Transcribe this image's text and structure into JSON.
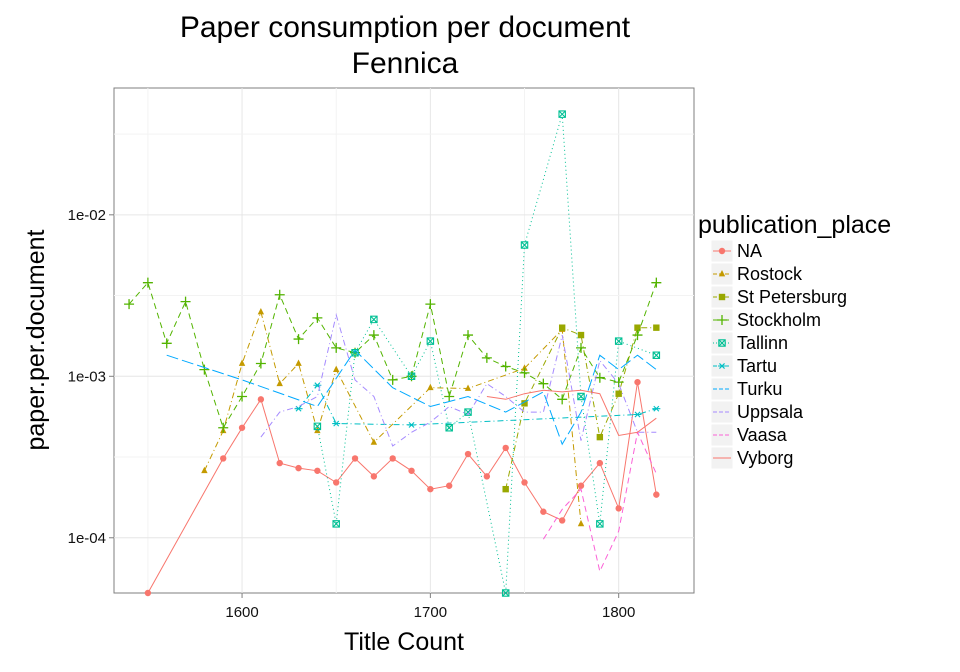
{
  "chart_data": {
    "type": "line",
    "title": "Paper consumption per document",
    "subtitle": "Fennica",
    "xlabel": "Title Count",
    "ylabel": "paper.per.document",
    "x_scale": "linear",
    "y_scale": "log10",
    "xlim": [
      1532,
      1840
    ],
    "ylim": [
      4.55e-05,
      0.061
    ],
    "x_ticks": [
      1600,
      1700,
      1800
    ],
    "x_tick_labels": [
      "1600",
      "1700",
      "1800"
    ],
    "y_ticks": [
      0.0001,
      0.001,
      0.01
    ],
    "y_tick_labels": [
      "1e-04",
      "1e-03",
      "1e-02"
    ],
    "grid": true,
    "legend_title": "publication_place",
    "legend_position": "right",
    "series": [
      {
        "name": "NA",
        "color": "#F8766D",
        "marker": "circle",
        "dash": "solid",
        "points": [
          [
            1550,
            4.55e-05
          ],
          [
            1590,
            0.00031
          ],
          [
            1600,
            0.00048
          ],
          [
            1610,
            0.00072
          ],
          [
            1620,
            0.00029
          ],
          [
            1630,
            0.00027
          ],
          [
            1640,
            0.00026
          ],
          [
            1650,
            0.00022
          ],
          [
            1660,
            0.00031
          ],
          [
            1670,
            0.00024
          ],
          [
            1680,
            0.00031
          ],
          [
            1690,
            0.00026
          ],
          [
            1700,
            0.0002
          ],
          [
            1710,
            0.00021
          ],
          [
            1720,
            0.00033
          ],
          [
            1730,
            0.00024
          ],
          [
            1740,
            0.00036
          ],
          [
            1750,
            0.00022
          ],
          [
            1760,
            0.000145
          ],
          [
            1770,
            0.000128
          ],
          [
            1780,
            0.00021
          ],
          [
            1790,
            0.00029
          ],
          [
            1800,
            0.000152
          ],
          [
            1810,
            0.00092
          ],
          [
            1820,
            0.000185
          ]
        ]
      },
      {
        "name": "Rostock",
        "color": "#C49A00",
        "marker": "triangle",
        "dash": "dashdot",
        "points": [
          [
            1580,
            0.00026
          ],
          [
            1590,
            0.00046
          ],
          [
            1600,
            0.0012
          ],
          [
            1610,
            0.0025
          ],
          [
            1620,
            0.0009
          ],
          [
            1630,
            0.0012
          ],
          [
            1640,
            0.00046
          ],
          [
            1650,
            0.0011
          ],
          [
            1670,
            0.00039
          ],
          [
            1700,
            0.00085
          ],
          [
            1720,
            0.00084
          ],
          [
            1750,
            0.00112
          ],
          [
            1770,
            0.00195
          ],
          [
            1780,
            0.000122
          ]
        ]
      },
      {
        "name": "St Petersburg",
        "color": "#99A800",
        "marker": "square",
        "dash": "dashdot",
        "points": [
          [
            1740,
            0.0002
          ],
          [
            1750,
            0.00068
          ],
          [
            1770,
            0.002
          ],
          [
            1780,
            0.0018
          ],
          [
            1790,
            0.00042
          ],
          [
            1800,
            0.00078
          ],
          [
            1810,
            0.002
          ],
          [
            1820,
            0.002
          ]
        ]
      },
      {
        "name": "Stockholm",
        "color": "#53B400",
        "marker": "plus",
        "dash": "dashed",
        "points": [
          [
            1540,
            0.0028
          ],
          [
            1550,
            0.0038
          ],
          [
            1560,
            0.0016
          ],
          [
            1570,
            0.0029
          ],
          [
            1580,
            0.0011
          ],
          [
            1590,
            0.00048
          ],
          [
            1600,
            0.00075
          ],
          [
            1610,
            0.0012
          ],
          [
            1620,
            0.0032
          ],
          [
            1630,
            0.0017
          ],
          [
            1640,
            0.0023
          ],
          [
            1650,
            0.0015
          ],
          [
            1660,
            0.0014
          ],
          [
            1670,
            0.0018
          ],
          [
            1680,
            0.00095
          ],
          [
            1690,
            0.001
          ],
          [
            1700,
            0.0028
          ],
          [
            1710,
            0.00075
          ],
          [
            1720,
            0.0018
          ],
          [
            1730,
            0.0013
          ],
          [
            1740,
            0.00115
          ],
          [
            1750,
            0.00105
          ],
          [
            1760,
            0.0009
          ],
          [
            1770,
            0.00072
          ],
          [
            1780,
            0.0015
          ],
          [
            1790,
            0.00098
          ],
          [
            1800,
            0.00092
          ],
          [
            1810,
            0.0018
          ],
          [
            1820,
            0.0038
          ]
        ]
      },
      {
        "name": "Tallinn",
        "color": "#00C094",
        "marker": "square-x",
        "dash": "dotted",
        "points": [
          [
            1640,
            0.00049
          ],
          [
            1650,
            0.000122
          ],
          [
            1660,
            0.0014
          ],
          [
            1670,
            0.00225
          ],
          [
            1690,
            0.001
          ],
          [
            1700,
            0.00165
          ],
          [
            1710,
            0.00048
          ],
          [
            1720,
            0.0006
          ],
          [
            1740,
            4.55e-05
          ],
          [
            1750,
            0.0065
          ],
          [
            1770,
            0.042
          ],
          [
            1780,
            0.00075
          ],
          [
            1790,
            0.000122
          ],
          [
            1800,
            0.00165
          ],
          [
            1820,
            0.00135
          ]
        ]
      },
      {
        "name": "Tartu",
        "color": "#00BFC4",
        "marker": "asterisk",
        "dash": "dashdot",
        "points": [
          [
            1630,
            0.00063
          ],
          [
            1640,
            0.00088
          ],
          [
            1650,
            0.00051
          ],
          [
            1690,
            0.0005
          ],
          [
            1810,
            0.00058
          ],
          [
            1820,
            0.00063
          ]
        ]
      },
      {
        "name": "Turku",
        "color": "#00A9FF",
        "marker": "none",
        "dash": "longdash",
        "points": [
          [
            1560,
            0.00135
          ],
          [
            1600,
            0.00095
          ],
          [
            1640,
            0.00065
          ],
          [
            1660,
            0.00145
          ],
          [
            1680,
            0.00085
          ],
          [
            1700,
            0.00065
          ],
          [
            1720,
            0.00075
          ],
          [
            1740,
            0.0006
          ],
          [
            1760,
            0.0008
          ],
          [
            1770,
            0.00038
          ],
          [
            1780,
            0.0006
          ],
          [
            1790,
            0.00135
          ],
          [
            1800,
            0.0011
          ],
          [
            1810,
            0.00135
          ],
          [
            1820,
            0.0011
          ]
        ]
      },
      {
        "name": "Uppsala",
        "color": "#A58AFF",
        "marker": "none",
        "dash": "dashdot",
        "points": [
          [
            1610,
            0.00042
          ],
          [
            1620,
            0.0006
          ],
          [
            1630,
            0.00065
          ],
          [
            1640,
            0.00075
          ],
          [
            1650,
            0.0024
          ],
          [
            1660,
            0.00095
          ],
          [
            1670,
            0.00075
          ],
          [
            1680,
            0.00037
          ],
          [
            1690,
            0.00045
          ],
          [
            1700,
            0.00052
          ],
          [
            1710,
            0.00065
          ],
          [
            1720,
            0.00058
          ],
          [
            1730,
            0.0009
          ],
          [
            1740,
            0.00075
          ],
          [
            1750,
            0.0006
          ],
          [
            1760,
            0.0006
          ],
          [
            1770,
            0.0018
          ],
          [
            1780,
            0.0004
          ],
          [
            1790,
            0.00125
          ],
          [
            1800,
            0.0009
          ],
          [
            1810,
            0.00045
          ],
          [
            1820,
            0.00045
          ]
        ]
      },
      {
        "name": "Vaasa",
        "color": "#FB61D7",
        "marker": "none",
        "dash": "dashed",
        "points": [
          [
            1760,
            9.8e-05
          ],
          [
            1770,
            0.00015
          ],
          [
            1780,
            0.0002
          ],
          [
            1790,
            6.2e-05
          ],
          [
            1800,
            0.00011
          ],
          [
            1810,
            0.00045
          ],
          [
            1820,
            0.00025
          ]
        ]
      },
      {
        "name": "Vyborg",
        "color": "#F8766D",
        "marker": "none",
        "dash": "solid",
        "points": [
          [
            1730,
            0.00075
          ],
          [
            1740,
            0.00072
          ],
          [
            1750,
            0.00078
          ],
          [
            1760,
            0.00082
          ],
          [
            1770,
            0.0008
          ],
          [
            1780,
            0.00082
          ],
          [
            1790,
            0.00078
          ],
          [
            1800,
            0.00043
          ],
          [
            1810,
            0.00045
          ],
          [
            1820,
            0.00055
          ]
        ]
      }
    ]
  }
}
